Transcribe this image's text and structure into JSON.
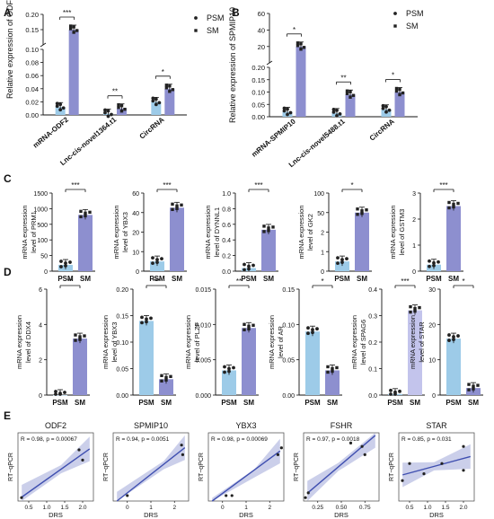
{
  "colors": {
    "psm": "#9dcbe8",
    "sm": "#8d8fcf",
    "sm_light": "#c3c4ec",
    "line": "#3f4fb0",
    "band": "#b9bfe3",
    "dot": "#222222"
  },
  "panel_labels": [
    "A",
    "B",
    "C",
    "D",
    "E"
  ],
  "chart_data": [
    {
      "panel": "A",
      "type": "bar",
      "ylabel": "Relative expression of ODF2",
      "categories": [
        "mRNA-ODF2",
        "Lnc-cis-novel1364.t1",
        "CircRNA"
      ],
      "series": [
        {
          "name": "PSM",
          "values": [
            0.012,
            0.002,
            0.02
          ]
        },
        {
          "name": "SM",
          "values": [
            0.15,
            0.01,
            0.04
          ]
        }
      ],
      "yticks": [
        "0.00",
        "0.02",
        "0.04",
        "0.06",
        "0.08",
        "0.10",
        "0.15",
        "0.20"
      ],
      "broken_axis": true,
      "significance": [
        "***",
        "**",
        "*"
      ],
      "legend": [
        "PSM",
        "SM"
      ]
    },
    {
      "panel": "B",
      "type": "bar",
      "ylabel": "Relative expression of SPMIP10",
      "categories": [
        "mRNA-SPMIP10",
        "Lnc-cis-novel5488.t1",
        "CircRNA"
      ],
      "series": [
        {
          "name": "PSM",
          "values": [
            0.02,
            0.015,
            0.03
          ]
        },
        {
          "name": "SM",
          "values": [
            20,
            0.09,
            0.1
          ]
        }
      ],
      "yticks": [
        "0.00",
        "0.05",
        "0.10",
        "0.15",
        "0.20",
        "20",
        "40",
        "60"
      ],
      "broken_axis": true,
      "significance": [
        "*",
        "**",
        "*"
      ],
      "legend": [
        "PSM",
        "SM"
      ]
    },
    {
      "panel": "C",
      "type": "bar",
      "ylabel": [
        "mRNA expression",
        "level of PRM1"
      ],
      "categories": [
        "PSM",
        "SM"
      ],
      "values": [
        20,
        800
      ],
      "yticks": [
        "0",
        "50",
        "100",
        "500",
        "1000",
        "1500"
      ],
      "broken_axis": true,
      "significance": "***"
    },
    {
      "panel": "C",
      "type": "bar",
      "ylabel": [
        "mRNA expression",
        "level of YBX3"
      ],
      "categories": [
        "PSM",
        "SM"
      ],
      "values": [
        5,
        45
      ],
      "yticks": [
        "0",
        "10",
        "20",
        "40",
        "60"
      ],
      "broken_axis": true,
      "significance": "***"
    },
    {
      "panel": "C",
      "type": "bar",
      "ylabel": [
        "mRNA expression",
        "level of DYNNL1"
      ],
      "categories": [
        "PSM",
        "SM"
      ],
      "values": [
        0.04,
        0.53
      ],
      "yticks": [
        "0.0",
        "0.2",
        "0.4",
        "0.6",
        "0.8",
        "1.0"
      ],
      "significance": "***"
    },
    {
      "panel": "C",
      "type": "bar",
      "ylabel": [
        "mRNA expression",
        "level of GK2"
      ],
      "categories": [
        "PSM",
        "SM"
      ],
      "values": [
        0.5,
        50
      ],
      "yticks": [
        "0",
        "1",
        "2",
        "50",
        "100"
      ],
      "broken_axis": true,
      "significance": "*"
    },
    {
      "panel": "C",
      "type": "bar",
      "ylabel": [
        "mRNA expression",
        "level of GSTM3"
      ],
      "categories": [
        "PSM",
        "SM"
      ],
      "values": [
        0.25,
        2.5
      ],
      "yticks": [
        "0",
        "1",
        "2",
        "3"
      ],
      "significance": "***"
    },
    {
      "panel": "D",
      "type": "bar",
      "ylabel": [
        "mRNA expression",
        "level of DDX4"
      ],
      "categories": [
        "PSM",
        "SM"
      ],
      "values": [
        0,
        3.2
      ],
      "yticks": [
        "0",
        "2",
        "4",
        "6"
      ],
      "significance": "**"
    },
    {
      "panel": "D",
      "type": "bar",
      "ylabel": [
        "mRNA expression",
        "level of YBX3"
      ],
      "categories": [
        "PSM",
        "SM"
      ],
      "values": [
        0.14,
        0.03
      ],
      "yticks": [
        "0.00",
        "0.05",
        "0.10",
        "0.15",
        "0.20"
      ],
      "significance": "***"
    },
    {
      "panel": "D",
      "type": "bar",
      "ylabel": [
        "mRNA expression",
        "level of PLZF"
      ],
      "categories": [
        "PSM",
        "SM"
      ],
      "values": [
        0.0035,
        0.0095
      ],
      "yticks": [
        "0.000",
        "0.005",
        "0.010",
        "0.015"
      ],
      "significance": "**"
    },
    {
      "panel": "D",
      "type": "bar",
      "ylabel": [
        "mRNA expression",
        "level of AR"
      ],
      "categories": [
        "PSM",
        "SM"
      ],
      "values": [
        0.09,
        0.035
      ],
      "yticks": [
        "0.00",
        "0.05",
        "0.10",
        "0.15"
      ],
      "significance": "*"
    },
    {
      "panel": "D",
      "type": "bar",
      "ylabel": [
        "mRNA expression",
        "level of SPAG6"
      ],
      "categories": [
        "PSM",
        "SM"
      ],
      "values": [
        0.004,
        0.32
      ],
      "yticks": [
        "0.0",
        "0.1",
        "0.2",
        "0.3",
        "0.4"
      ],
      "significance": "***"
    },
    {
      "panel": "D",
      "type": "bar",
      "ylabel": [
        "mRNA expression",
        "level of STAR"
      ],
      "categories": [
        "PSM",
        "SM"
      ],
      "values": [
        16,
        2
      ],
      "yticks": [
        "0",
        "10",
        "20",
        "30"
      ],
      "significance": "*"
    },
    {
      "panel": "E",
      "type": "scatter",
      "title": "ODF2",
      "annotation": "R = 0.98, p = 0.00067",
      "xlabel": "DRS",
      "ylabel": "RT−qPCR",
      "xticks": [
        "0.5",
        "1.0",
        "1.5",
        "2.0"
      ],
      "x": [
        0.3,
        1.9,
        2.0
      ],
      "y": [
        0.05,
        0.75,
        0.6
      ]
    },
    {
      "panel": "E",
      "type": "scatter",
      "title": "SPMIP10",
      "annotation": "R = 0.94, p = 0.0051",
      "xlabel": "DRS",
      "ylabel": "RT−qPCR",
      "xticks": [
        "0",
        "1",
        "2"
      ],
      "x": [
        0.0,
        2.3,
        2.35
      ],
      "y": [
        0.08,
        0.82,
        0.68
      ]
    },
    {
      "panel": "E",
      "type": "scatter",
      "title": "YBX3",
      "annotation": "R = 0.98, p = 0.00069",
      "xlabel": "DRS",
      "ylabel": "RT−qPCR",
      "xticks": [
        "0",
        "1",
        "2"
      ],
      "x": [
        0.15,
        0.4,
        2.35,
        2.5
      ],
      "y": [
        0.08,
        0.08,
        0.68,
        0.78
      ]
    },
    {
      "panel": "E",
      "type": "scatter",
      "title": "FSHR",
      "annotation": "R = 0.97, p = 0.0018",
      "xlabel": "DRS",
      "ylabel": "RT−qPCR",
      "xticks": [
        "0.25",
        "0.50",
        "0.75"
      ],
      "x": [
        0.12,
        0.15,
        0.6,
        0.72,
        0.75
      ],
      "y": [
        0.05,
        0.12,
        0.85,
        0.8,
        0.68
      ]
    },
    {
      "panel": "E",
      "type": "scatter",
      "title": "STAR",
      "annotation": "R = 0.85, p = 0.031",
      "xlabel": "DRS",
      "ylabel": "RT−qPCR",
      "xticks": [
        "0.5",
        "1.0",
        "1.5",
        "2.0"
      ],
      "x": [
        0.3,
        0.5,
        0.9,
        1.4,
        2.0,
        2.0
      ],
      "y": [
        0.3,
        0.55,
        0.4,
        0.55,
        0.8,
        0.45
      ]
    }
  ]
}
